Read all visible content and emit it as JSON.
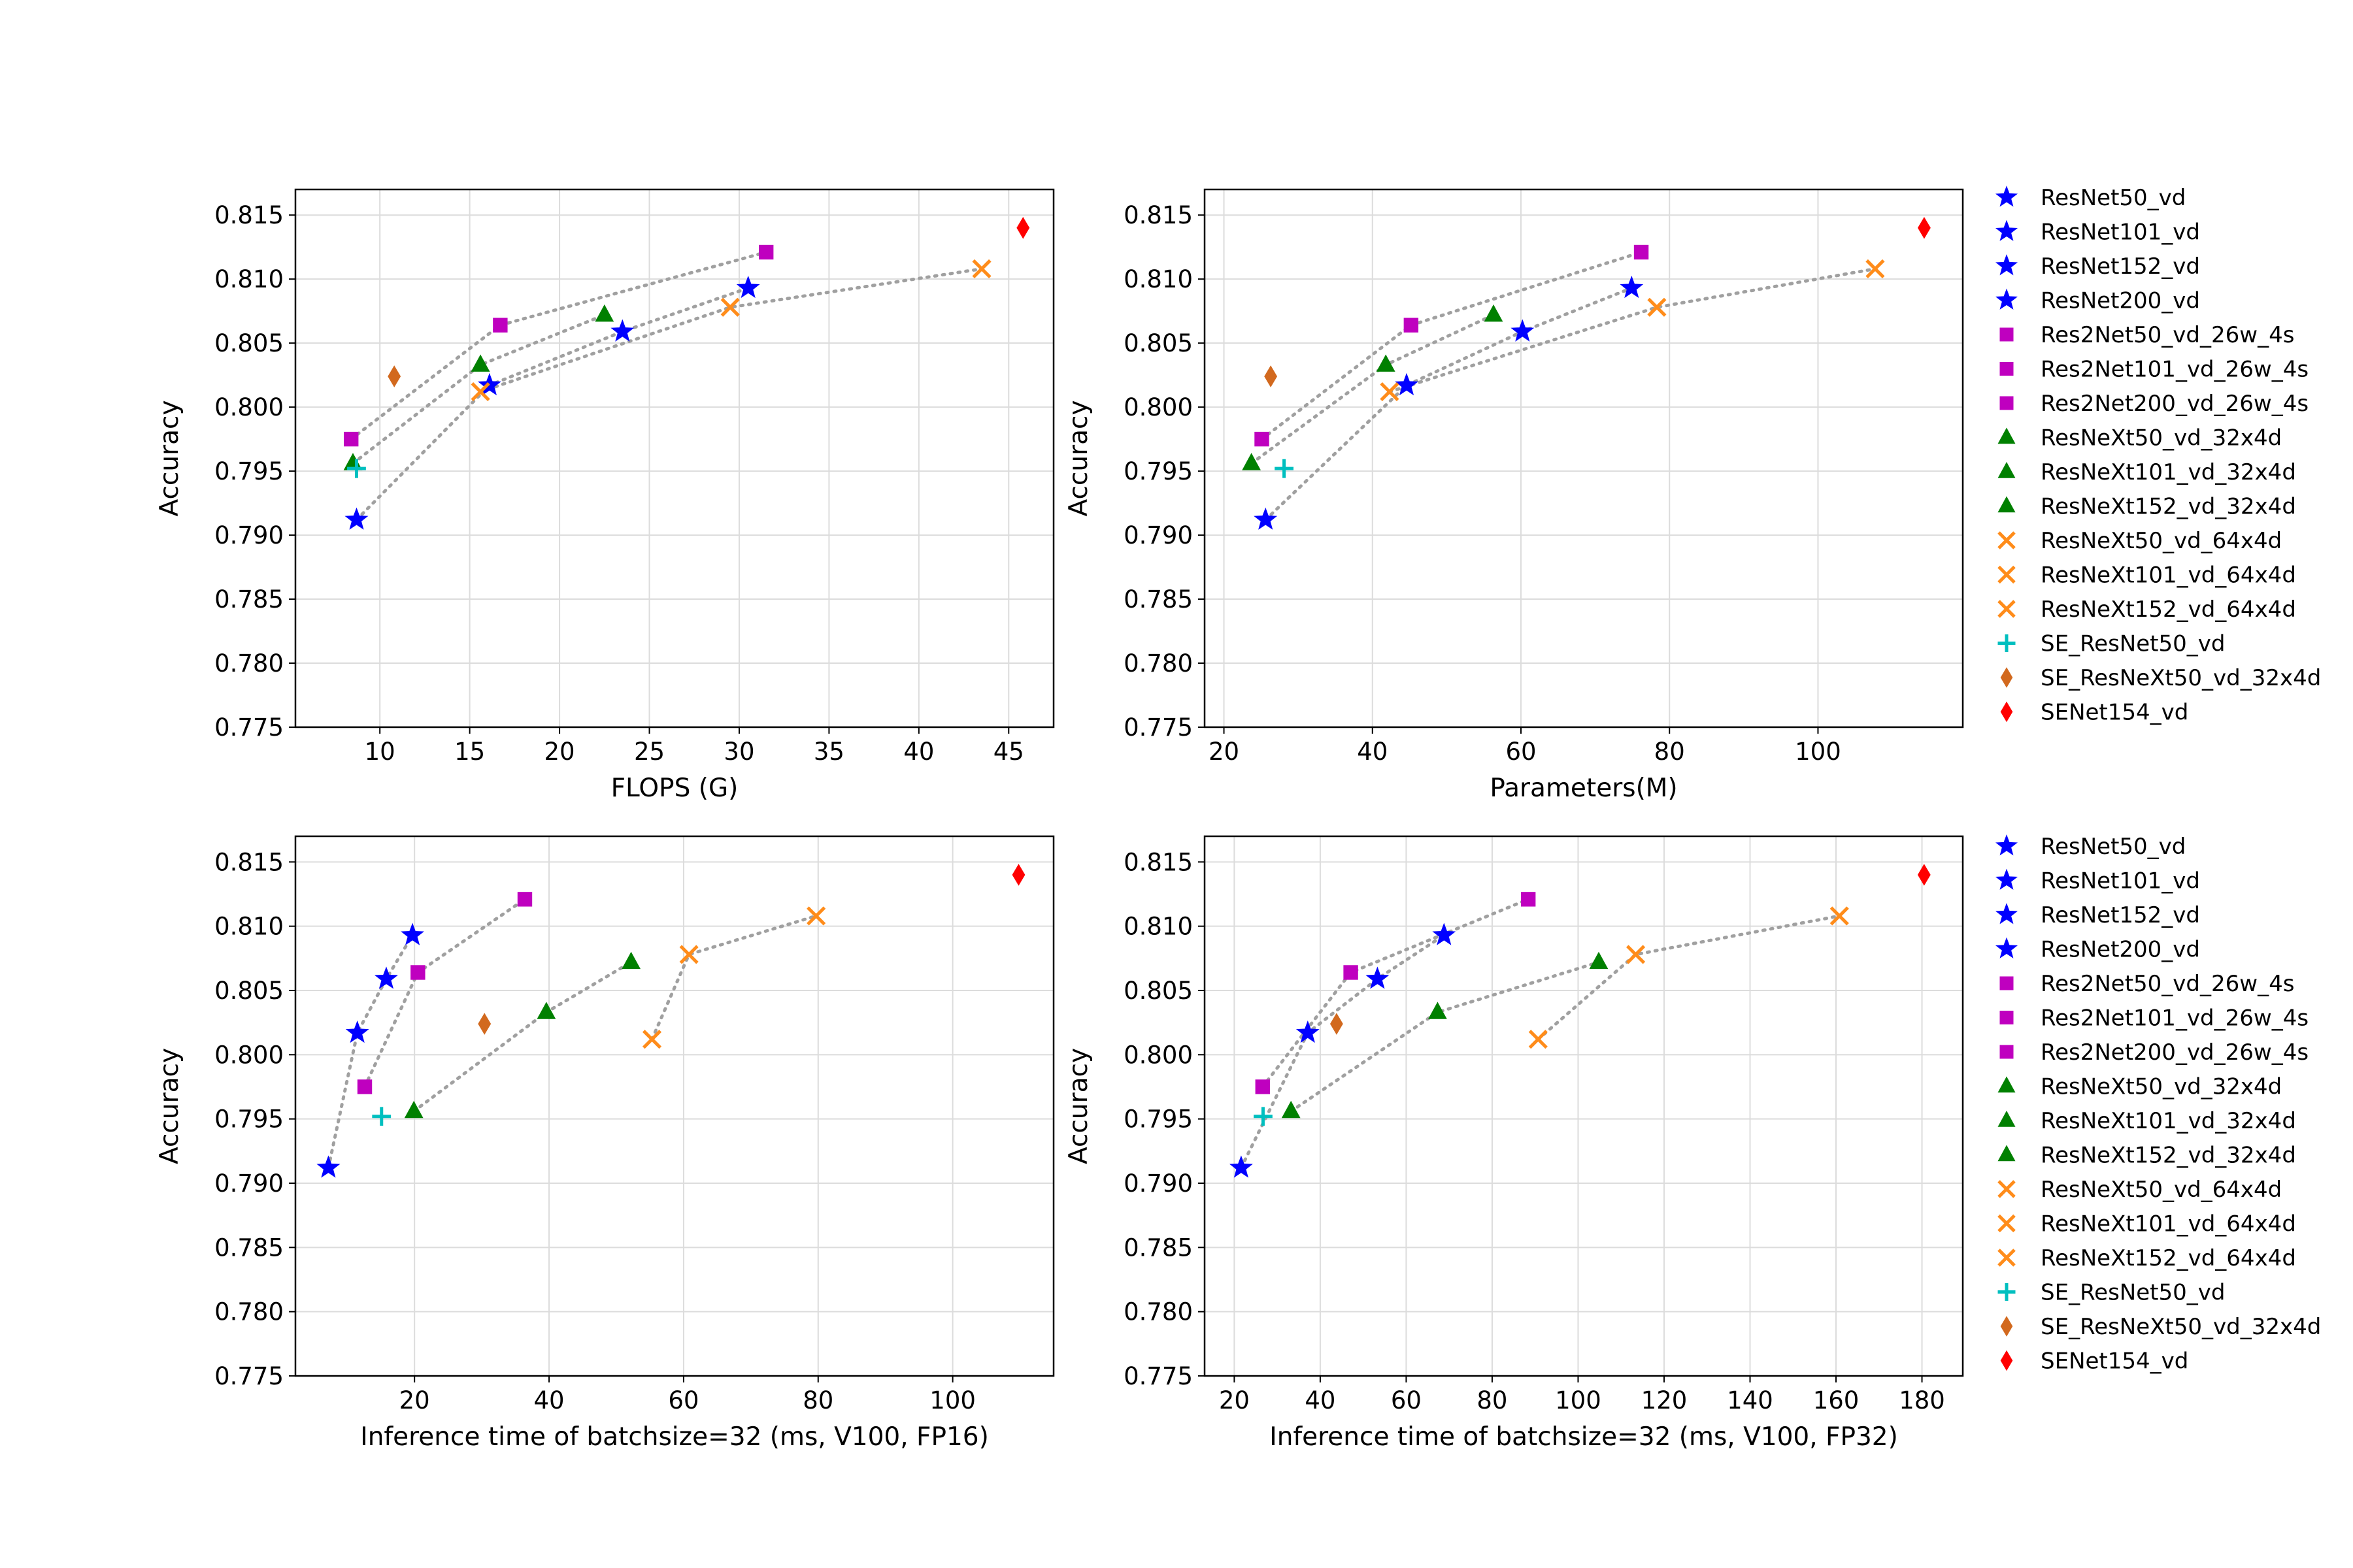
{
  "styles": {
    "ResNet": {
      "marker": "star",
      "color": "#0000ff"
    },
    "Res2Net": {
      "marker": "square",
      "color": "#bf00bf"
    },
    "ResNeXt32": {
      "marker": "triangle",
      "color": "#008000"
    },
    "ResNeXt64": {
      "marker": "x",
      "color": "#ff8c1a"
    },
    "SE_ResNet": {
      "marker": "plus",
      "color": "#00bfbf"
    },
    "SE_ResNeXt": {
      "marker": "diamond",
      "color": "#d2691e"
    },
    "SENet": {
      "marker": "diamond",
      "color": "#ff0000"
    },
    "trend_line_color": "#a0a0a0",
    "grid_color": "#dcdcdc"
  },
  "legend_entries": [
    {
      "label": "ResNet50_vd",
      "style": "ResNet"
    },
    {
      "label": "ResNet101_vd",
      "style": "ResNet"
    },
    {
      "label": "ResNet152_vd",
      "style": "ResNet"
    },
    {
      "label": "ResNet200_vd",
      "style": "ResNet"
    },
    {
      "label": "Res2Net50_vd_26w_4s",
      "style": "Res2Net"
    },
    {
      "label": "Res2Net101_vd_26w_4s",
      "style": "Res2Net"
    },
    {
      "label": "Res2Net200_vd_26w_4s",
      "style": "Res2Net"
    },
    {
      "label": "ResNeXt50_vd_32x4d",
      "style": "ResNeXt32"
    },
    {
      "label": "ResNeXt101_vd_32x4d",
      "style": "ResNeXt32"
    },
    {
      "label": "ResNeXt152_vd_32x4d",
      "style": "ResNeXt32"
    },
    {
      "label": "ResNeXt50_vd_64x4d",
      "style": "ResNeXt64"
    },
    {
      "label": "ResNeXt101_vd_64x4d",
      "style": "ResNeXt64"
    },
    {
      "label": "ResNeXt152_vd_64x4d",
      "style": "ResNeXt64"
    },
    {
      "label": "SE_ResNet50_vd",
      "style": "SE_ResNet"
    },
    {
      "label": "SE_ResNeXt50_vd_32x4d",
      "style": "SE_ResNeXt"
    },
    {
      "label": "SENet154_vd",
      "style": "SENet"
    }
  ],
  "chart_data": [
    {
      "type": "scatter",
      "xlabel": "FLOPS (G)",
      "ylabel": "Accuracy",
      "xlim": [
        5.3,
        47.5
      ],
      "ylim": [
        0.775,
        0.817
      ],
      "xticks": [
        10,
        15,
        20,
        25,
        30,
        35,
        40,
        45
      ],
      "yticks": [
        0.775,
        0.78,
        0.785,
        0.79,
        0.795,
        0.8,
        0.805,
        0.81,
        0.815
      ],
      "grid": true,
      "legend": "none",
      "series": [
        {
          "name": "ResNet50_vd",
          "style": "ResNet",
          "x": 8.7,
          "y": 0.7912
        },
        {
          "name": "ResNet101_vd",
          "style": "ResNet",
          "x": 16.1,
          "y": 0.8017
        },
        {
          "name": "ResNet152_vd",
          "style": "ResNet",
          "x": 23.5,
          "y": 0.8059
        },
        {
          "name": "ResNet200_vd",
          "style": "ResNet",
          "x": 30.5,
          "y": 0.8093
        },
        {
          "name": "Res2Net50_vd_26w_4s",
          "style": "Res2Net",
          "x": 8.4,
          "y": 0.7975
        },
        {
          "name": "Res2Net101_vd_26w_4s",
          "style": "Res2Net",
          "x": 16.7,
          "y": 0.8064
        },
        {
          "name": "Res2Net200_vd_26w_4s",
          "style": "Res2Net",
          "x": 31.5,
          "y": 0.8121
        },
        {
          "name": "ResNeXt50_vd_32x4d",
          "style": "ResNeXt32",
          "x": 8.5,
          "y": 0.7956
        },
        {
          "name": "ResNeXt101_vd_32x4d",
          "style": "ResNeXt32",
          "x": 15.6,
          "y": 0.8033
        },
        {
          "name": "ResNeXt152_vd_32x4d",
          "style": "ResNeXt32",
          "x": 22.5,
          "y": 0.8072
        },
        {
          "name": "ResNeXt50_vd_64x4d",
          "style": "ResNeXt64",
          "x": 15.6,
          "y": 0.8012
        },
        {
          "name": "ResNeXt101_vd_64x4d",
          "style": "ResNeXt64",
          "x": 29.5,
          "y": 0.8078
        },
        {
          "name": "ResNeXt152_vd_64x4d",
          "style": "ResNeXt64",
          "x": 43.5,
          "y": 0.8108
        },
        {
          "name": "SE_ResNet50_vd",
          "style": "SE_ResNet",
          "x": 8.7,
          "y": 0.7952
        },
        {
          "name": "SE_ResNeXt50_vd_32x4d",
          "style": "SE_ResNeXt",
          "x": 10.8,
          "y": 0.8024
        },
        {
          "name": "SENet154_vd",
          "style": "SENet",
          "x": 45.8,
          "y": 0.814
        }
      ],
      "trend_lines": [
        [
          [
            8.7,
            0.7912
          ],
          [
            16.1,
            0.8017
          ],
          [
            23.5,
            0.8059
          ],
          [
            30.5,
            0.8093
          ]
        ],
        [
          [
            8.4,
            0.7975
          ],
          [
            16.7,
            0.8064
          ],
          [
            31.5,
            0.8121
          ]
        ],
        [
          [
            8.5,
            0.7956
          ],
          [
            15.6,
            0.8033
          ],
          [
            22.5,
            0.8072
          ]
        ],
        [
          [
            15.6,
            0.8012
          ],
          [
            29.5,
            0.8078
          ],
          [
            43.5,
            0.8108
          ]
        ]
      ]
    },
    {
      "type": "scatter",
      "xlabel": "Parameters(M)",
      "ylabel": "Accuracy",
      "xlim": [
        17.4,
        119.5
      ],
      "ylim": [
        0.775,
        0.817
      ],
      "xticks": [
        20,
        40,
        60,
        80,
        100
      ],
      "yticks": [
        0.775,
        0.78,
        0.785,
        0.79,
        0.795,
        0.8,
        0.805,
        0.81,
        0.815
      ],
      "grid": true,
      "legend": "outside-right",
      "series": [
        {
          "name": "ResNet50_vd",
          "style": "ResNet",
          "x": 25.6,
          "y": 0.7912
        },
        {
          "name": "ResNet101_vd",
          "style": "ResNet",
          "x": 44.6,
          "y": 0.8017
        },
        {
          "name": "ResNet152_vd",
          "style": "ResNet",
          "x": 60.2,
          "y": 0.8059
        },
        {
          "name": "ResNet200_vd",
          "style": "ResNet",
          "x": 74.9,
          "y": 0.8093
        },
        {
          "name": "Res2Net50_vd_26w_4s",
          "style": "Res2Net",
          "x": 25.1,
          "y": 0.7975
        },
        {
          "name": "Res2Net101_vd_26w_4s",
          "style": "Res2Net",
          "x": 45.2,
          "y": 0.8064
        },
        {
          "name": "Res2Net200_vd_26w_4s",
          "style": "Res2Net",
          "x": 76.2,
          "y": 0.8121
        },
        {
          "name": "ResNeXt50_vd_32x4d",
          "style": "ResNeXt32",
          "x": 23.7,
          "y": 0.7956
        },
        {
          "name": "ResNeXt101_vd_32x4d",
          "style": "ResNeXt32",
          "x": 41.8,
          "y": 0.8033
        },
        {
          "name": "ResNeXt152_vd_32x4d",
          "style": "ResNeXt32",
          "x": 56.3,
          "y": 0.8072
        },
        {
          "name": "ResNeXt50_vd_64x4d",
          "style": "ResNeXt64",
          "x": 42.3,
          "y": 0.8012
        },
        {
          "name": "ResNeXt101_vd_64x4d",
          "style": "ResNeXt64",
          "x": 78.3,
          "y": 0.8078
        },
        {
          "name": "ResNeXt152_vd_64x4d",
          "style": "ResNeXt64",
          "x": 107.7,
          "y": 0.8108
        },
        {
          "name": "SE_ResNet50_vd",
          "style": "SE_ResNet",
          "x": 28.1,
          "y": 0.7952
        },
        {
          "name": "SE_ResNeXt50_vd_32x4d",
          "style": "SE_ResNeXt",
          "x": 26.3,
          "y": 0.8024
        },
        {
          "name": "SENet154_vd",
          "style": "SENet",
          "x": 114.3,
          "y": 0.814
        }
      ],
      "trend_lines": [
        [
          [
            25.6,
            0.7912
          ],
          [
            44.6,
            0.8017
          ],
          [
            60.2,
            0.8059
          ],
          [
            74.9,
            0.8093
          ]
        ],
        [
          [
            25.1,
            0.7975
          ],
          [
            45.2,
            0.8064
          ],
          [
            76.2,
            0.8121
          ]
        ],
        [
          [
            23.7,
            0.7956
          ],
          [
            41.8,
            0.8033
          ],
          [
            56.3,
            0.8072
          ]
        ],
        [
          [
            42.3,
            0.8012
          ],
          [
            78.3,
            0.8078
          ],
          [
            107.7,
            0.8108
          ]
        ]
      ]
    },
    {
      "type": "scatter",
      "xlabel": "Inference time of batchsize=32 (ms, V100, FP16)",
      "ylabel": "Accuracy",
      "xlim": [
        2.3,
        115
      ],
      "ylim": [
        0.775,
        0.817
      ],
      "xticks": [
        20,
        40,
        60,
        80,
        100
      ],
      "yticks": [
        0.775,
        0.78,
        0.785,
        0.79,
        0.795,
        0.8,
        0.805,
        0.81,
        0.815
      ],
      "grid": true,
      "legend": "none",
      "series": [
        {
          "name": "ResNet50_vd",
          "style": "ResNet",
          "x": 7.2,
          "y": 0.7912
        },
        {
          "name": "ResNet101_vd",
          "style": "ResNet",
          "x": 11.5,
          "y": 0.8017
        },
        {
          "name": "ResNet152_vd",
          "style": "ResNet",
          "x": 15.8,
          "y": 0.8059
        },
        {
          "name": "ResNet200_vd",
          "style": "ResNet",
          "x": 19.7,
          "y": 0.8093
        },
        {
          "name": "Res2Net50_vd_26w_4s",
          "style": "Res2Net",
          "x": 12.6,
          "y": 0.7975
        },
        {
          "name": "Res2Net101_vd_26w_4s",
          "style": "Res2Net",
          "x": 20.5,
          "y": 0.8064
        },
        {
          "name": "Res2Net200_vd_26w_4s",
          "style": "Res2Net",
          "x": 36.4,
          "y": 0.8121
        },
        {
          "name": "ResNeXt50_vd_32x4d",
          "style": "ResNeXt32",
          "x": 19.9,
          "y": 0.7956
        },
        {
          "name": "ResNeXt101_vd_32x4d",
          "style": "ResNeXt32",
          "x": 39.6,
          "y": 0.8033
        },
        {
          "name": "ResNeXt152_vd_32x4d",
          "style": "ResNeXt32",
          "x": 52.2,
          "y": 0.8072
        },
        {
          "name": "ResNeXt50_vd_64x4d",
          "style": "ResNeXt64",
          "x": 55.3,
          "y": 0.8012
        },
        {
          "name": "ResNeXt101_vd_64x4d",
          "style": "ResNeXt64",
          "x": 60.8,
          "y": 0.8078
        },
        {
          "name": "ResNeXt152_vd_64x4d",
          "style": "ResNeXt64",
          "x": 79.7,
          "y": 0.8108
        },
        {
          "name": "SE_ResNet50_vd",
          "style": "SE_ResNet",
          "x": 15.1,
          "y": 0.7952
        },
        {
          "name": "SE_ResNeXt50_vd_32x4d",
          "style": "SE_ResNeXt",
          "x": 30.4,
          "y": 0.8024
        },
        {
          "name": "SENet154_vd",
          "style": "SENet",
          "x": 109.8,
          "y": 0.814
        }
      ],
      "trend_lines": [
        [
          [
            7.2,
            0.7912
          ],
          [
            11.5,
            0.8017
          ],
          [
            15.8,
            0.8059
          ],
          [
            19.7,
            0.8093
          ]
        ],
        [
          [
            12.6,
            0.7975
          ],
          [
            20.5,
            0.8064
          ],
          [
            36.4,
            0.8121
          ]
        ],
        [
          [
            19.9,
            0.7956
          ],
          [
            39.6,
            0.8033
          ],
          [
            52.2,
            0.8072
          ]
        ],
        [
          [
            55.3,
            0.8012
          ],
          [
            60.8,
            0.8078
          ],
          [
            79.7,
            0.8108
          ]
        ]
      ]
    },
    {
      "type": "scatter",
      "xlabel": "Inference time of batchsize=32 (ms, V100, FP32)",
      "ylabel": "Accuracy",
      "xlim": [
        13.1,
        189.5
      ],
      "ylim": [
        0.775,
        0.817
      ],
      "xticks": [
        20,
        40,
        60,
        80,
        100,
        120,
        140,
        160,
        180
      ],
      "yticks": [
        0.775,
        0.78,
        0.785,
        0.79,
        0.795,
        0.8,
        0.805,
        0.81,
        0.815
      ],
      "grid": true,
      "legend": "outside-right",
      "series": [
        {
          "name": "ResNet50_vd",
          "style": "ResNet",
          "x": 21.6,
          "y": 0.7912
        },
        {
          "name": "ResNet101_vd",
          "style": "ResNet",
          "x": 37.1,
          "y": 0.8017
        },
        {
          "name": "ResNet152_vd",
          "style": "ResNet",
          "x": 53.3,
          "y": 0.8059
        },
        {
          "name": "ResNet200_vd",
          "style": "ResNet",
          "x": 68.8,
          "y": 0.8093
        },
        {
          "name": "Res2Net50_vd_26w_4s",
          "style": "Res2Net",
          "x": 26.6,
          "y": 0.7975
        },
        {
          "name": "Res2Net101_vd_26w_4s",
          "style": "Res2Net",
          "x": 47.1,
          "y": 0.8064
        },
        {
          "name": "Res2Net200_vd_26w_4s",
          "style": "Res2Net",
          "x": 88.4,
          "y": 0.8121
        },
        {
          "name": "ResNeXt50_vd_32x4d",
          "style": "ResNeXt32",
          "x": 33.2,
          "y": 0.7956
        },
        {
          "name": "ResNeXt101_vd_32x4d",
          "style": "ResNeXt32",
          "x": 67.3,
          "y": 0.8033
        },
        {
          "name": "ResNeXt152_vd_32x4d",
          "style": "ResNeXt32",
          "x": 104.8,
          "y": 0.8072
        },
        {
          "name": "ResNeXt50_vd_64x4d",
          "style": "ResNeXt64",
          "x": 90.7,
          "y": 0.8012
        },
        {
          "name": "ResNeXt101_vd_64x4d",
          "style": "ResNeXt64",
          "x": 113.4,
          "y": 0.8078
        },
        {
          "name": "ResNeXt152_vd_64x4d",
          "style": "ResNeXt64",
          "x": 160.8,
          "y": 0.8108
        },
        {
          "name": "SE_ResNet50_vd",
          "style": "SE_ResNet",
          "x": 26.7,
          "y": 0.7952
        },
        {
          "name": "SE_ResNeXt50_vd_32x4d",
          "style": "SE_ResNeXt",
          "x": 43.8,
          "y": 0.8024
        },
        {
          "name": "SENet154_vd",
          "style": "SENet",
          "x": 180.5,
          "y": 0.814
        }
      ],
      "trend_lines": [
        [
          [
            21.6,
            0.7912
          ],
          [
            37.1,
            0.8017
          ],
          [
            53.3,
            0.8059
          ],
          [
            68.8,
            0.8093
          ]
        ],
        [
          [
            26.6,
            0.7975
          ],
          [
            47.1,
            0.8064
          ],
          [
            88.4,
            0.8121
          ]
        ],
        [
          [
            33.2,
            0.7956
          ],
          [
            67.3,
            0.8033
          ],
          [
            104.8,
            0.8072
          ]
        ],
        [
          [
            90.7,
            0.8012
          ],
          [
            113.4,
            0.8078
          ],
          [
            160.8,
            0.8108
          ]
        ]
      ]
    }
  ]
}
